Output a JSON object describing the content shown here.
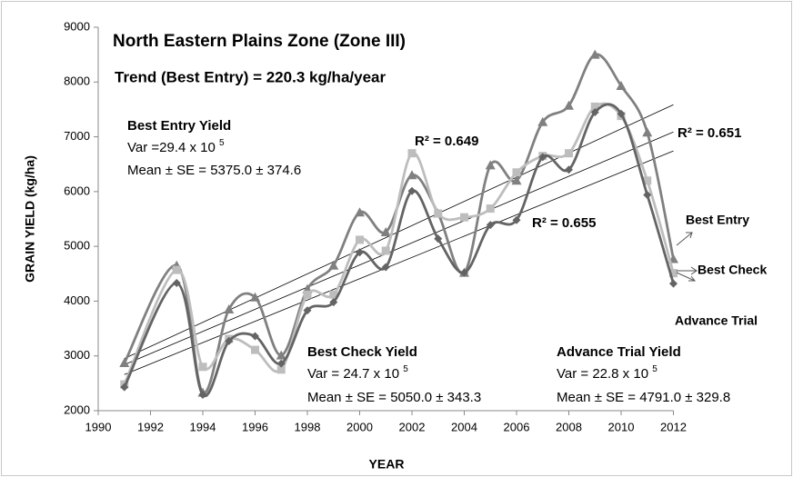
{
  "chart_data": {
    "type": "line",
    "title": "North Eastern Plains Zone (Zone III)",
    "subtitle": "Trend (Best Entry) = 220.3 kg/ha/year",
    "x_label": "YEAR",
    "y_label": "GRAIN YIELD (kg/ha)",
    "x": [
      1991,
      1993,
      1994,
      1995,
      1996,
      1997,
      1998,
      1999,
      2000,
      2001,
      2002,
      2003,
      2004,
      2005,
      2006,
      2007,
      2008,
      2009,
      2010,
      2011,
      2012
    ],
    "series": [
      {
        "name": "Best Entry",
        "color": "#808080",
        "marker": "triangle",
        "values": [
          2870,
          4650,
          2330,
          3850,
          4070,
          3010,
          4220,
          4650,
          5620,
          5260,
          6300,
          5600,
          4520,
          6480,
          6200,
          7270,
          7570,
          8500,
          7930,
          7080,
          4770
        ]
      },
      {
        "name": "Best Check",
        "color": "#bdbdbd",
        "marker": "square",
        "values": [
          2480,
          4570,
          2800,
          3310,
          3110,
          2750,
          4120,
          4120,
          5120,
          4920,
          6700,
          5600,
          5530,
          5690,
          6350,
          6650,
          6700,
          7550,
          7380,
          6200,
          4510
        ]
      },
      {
        "name": "Advance Trial",
        "color": "#646464",
        "marker": "diamond",
        "values": [
          2430,
          4330,
          2290,
          3270,
          3360,
          2860,
          3830,
          3980,
          4890,
          4620,
          6010,
          5140,
          4520,
          5390,
          5480,
          6630,
          6400,
          7450,
          7420,
          5940,
          4320
        ]
      }
    ],
    "xlim": [
      1990,
      2012
    ],
    "xticks": [
      1990,
      1992,
      1994,
      1996,
      1998,
      2000,
      2002,
      2004,
      2006,
      2008,
      2010,
      2012
    ],
    "ylim": [
      2000,
      9000
    ],
    "yticks": [
      2000,
      3000,
      4000,
      5000,
      6000,
      7000,
      8000,
      9000
    ],
    "trendlines": true,
    "r_squared_labels": [
      "R² = 0.649",
      "R² = 0.651",
      "R² = 0.655"
    ],
    "stats": [
      {
        "heading": "Best Entry Yield",
        "var": "Var =29.4 x 10",
        "var_exp": "5",
        "mean": "Mean  ± SE = 5375.0 ± 374.6"
      },
      {
        "heading": "Best Check  Yield",
        "var": "Var = 24.7 x 10",
        "var_exp": "5",
        "mean": "Mean  ± SE = 5050.0 ± 343.3"
      },
      {
        "heading": "Advance Trial Yield",
        "var": "Var = 22.8 x 10",
        "var_exp": "5",
        "mean": "Mean  ± SE = 4791.0 ± 329.8"
      }
    ]
  }
}
